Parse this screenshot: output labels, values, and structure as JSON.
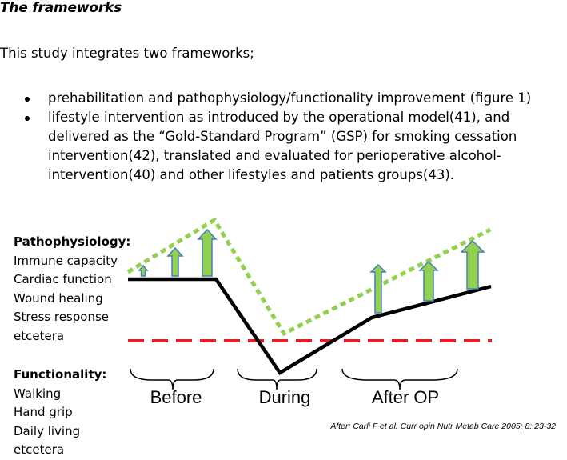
{
  "document": {
    "title": "The frameworks",
    "intro": "This study integrates two frameworks;",
    "bullets": [
      "prehabilitation and pathophysiology/functionality improvement (figure 1)",
      "lifestyle intervention as introduced by the operational model(41), and delivered as the “Gold-Standard Program” (GSP) for smoking cessation intervention(42), translated and evaluated for perioperative alcohol-intervention(40) and other lifestyles and patients groups(43)."
    ]
  },
  "figure": {
    "pathophysiology": {
      "heading": "Pathophysiology:",
      "items": [
        "Immune capacity",
        "Cardiac function",
        "Wound healing",
        "Stress response",
        "etcetera"
      ]
    },
    "functionality": {
      "heading": "Functionality:",
      "items": [
        "Walking",
        "Hand grip",
        "Daily living",
        "etcetera"
      ]
    },
    "phases": [
      "Before",
      "During",
      "After OP"
    ],
    "citation": "After: Carli F et al. Curr opin Nutr Metab Care 2005; 8: 23-32",
    "colors": {
      "baseline_line": "#000000",
      "prehab_line": "#92d050",
      "threshold_line": "#e41e26",
      "arrow_fill": "#92d050",
      "arrow_stroke": "#4a7ebb"
    }
  }
}
